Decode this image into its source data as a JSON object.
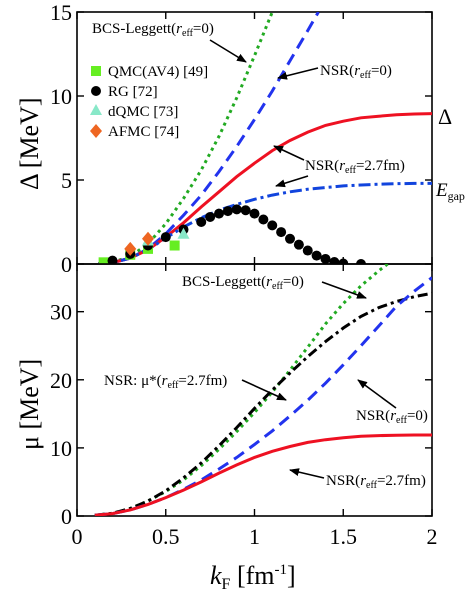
{
  "chart_data": [
    {
      "type": "line",
      "xlim": [
        0,
        2
      ],
      "ylim": [
        0,
        15
      ],
      "xticks": [
        0,
        0.5,
        1,
        1.5,
        2
      ],
      "yticks": [
        0,
        5,
        10,
        15
      ],
      "ylabel": "Δ  [MeV]",
      "series": [
        {
          "name": "BCS-Leggett(r_eff=0)",
          "color": "#22aa22",
          "dash": "3,4",
          "points": [
            [
              0.12,
              0.01
            ],
            [
              0.2,
              0.1
            ],
            [
              0.3,
              0.45
            ],
            [
              0.4,
              1.2
            ],
            [
              0.5,
              2.4
            ],
            [
              0.6,
              3.9
            ],
            [
              0.7,
              5.6
            ],
            [
              0.8,
              7.6
            ],
            [
              0.9,
              9.9
            ],
            [
              1.0,
              12.4
            ],
            [
              1.1,
              15.0
            ]
          ]
        },
        {
          "name": "NSR(r_eff=0)",
          "color": "#2233ee",
          "dash": "12,7",
          "points": [
            [
              0.12,
              0.01
            ],
            [
              0.2,
              0.08
            ],
            [
              0.3,
              0.35
            ],
            [
              0.4,
              0.9
            ],
            [
              0.5,
              1.8
            ],
            [
              0.6,
              2.9
            ],
            [
              0.7,
              4.1
            ],
            [
              0.8,
              5.5
            ],
            [
              0.9,
              7.0
            ],
            [
              1.0,
              8.6
            ],
            [
              1.1,
              10.3
            ],
            [
              1.2,
              12.1
            ],
            [
              1.3,
              13.9
            ],
            [
              1.36,
              15.0
            ]
          ]
        },
        {
          "name": "NSR(r_eff=2.7fm)",
          "color": "#ee1122",
          "dash": "",
          "points": [
            [
              0.12,
              0.01
            ],
            [
              0.2,
              0.08
            ],
            [
              0.3,
              0.35
            ],
            [
              0.4,
              0.85
            ],
            [
              0.5,
              1.6
            ],
            [
              0.6,
              2.45
            ],
            [
              0.7,
              3.4
            ],
            [
              0.8,
              4.3
            ],
            [
              0.9,
              5.2
            ],
            [
              1.0,
              6.0
            ],
            [
              1.1,
              6.75
            ],
            [
              1.2,
              7.35
            ],
            [
              1.3,
              7.85
            ],
            [
              1.4,
              8.25
            ],
            [
              1.5,
              8.5
            ],
            [
              1.6,
              8.7
            ],
            [
              1.7,
              8.8
            ],
            [
              1.8,
              8.88
            ],
            [
              1.9,
              8.93
            ],
            [
              2.0,
              8.95
            ]
          ]
        },
        {
          "name": "E_gap",
          "color": "#1144dd",
          "dash": "12,4,3,4",
          "points": [
            [
              0.12,
              0.01
            ],
            [
              0.2,
              0.08
            ],
            [
              0.3,
              0.35
            ],
            [
              0.4,
              0.85
            ],
            [
              0.5,
              1.55
            ],
            [
              0.6,
              2.2
            ],
            [
              0.7,
              2.75
            ],
            [
              0.8,
              3.2
            ],
            [
              0.9,
              3.55
            ],
            [
              1.0,
              3.85
            ],
            [
              1.1,
              4.1
            ],
            [
              1.2,
              4.3
            ],
            [
              1.3,
              4.45
            ],
            [
              1.4,
              4.55
            ],
            [
              1.5,
              4.65
            ],
            [
              1.6,
              4.7
            ],
            [
              1.7,
              4.75
            ],
            [
              1.8,
              4.78
            ],
            [
              1.9,
              4.8
            ],
            [
              2.0,
              4.8
            ]
          ]
        }
      ],
      "markers": [
        {
          "name": "QMC(AV4) [49]",
          "shape": "square",
          "color": "#66ee22",
          "points": [
            [
              0.15,
              0.1
            ],
            [
              0.3,
              0.55
            ],
            [
              0.4,
              0.9
            ],
            [
              0.55,
              1.1
            ]
          ]
        },
        {
          "name": "RG [72]",
          "shape": "circle",
          "color": "#000000",
          "points": [
            [
              0.2,
              0.2
            ],
            [
              0.3,
              0.6
            ],
            [
              0.4,
              1.1
            ],
            [
              0.5,
              1.6
            ],
            [
              0.6,
              2.05
            ],
            [
              0.7,
              2.5
            ],
            [
              0.75,
              2.8
            ],
            [
              0.8,
              3.0
            ],
            [
              0.85,
              3.15
            ],
            [
              0.9,
              3.25
            ],
            [
              0.95,
              3.2
            ],
            [
              1.0,
              3.0
            ],
            [
              1.05,
              2.65
            ],
            [
              1.1,
              2.3
            ],
            [
              1.15,
              1.9
            ],
            [
              1.2,
              1.5
            ],
            [
              1.25,
              1.15
            ],
            [
              1.3,
              0.8
            ],
            [
              1.35,
              0.5
            ],
            [
              1.4,
              0.3
            ],
            [
              1.45,
              0.12
            ],
            [
              1.5,
              0.03
            ],
            [
              1.6,
              0.0
            ]
          ]
        },
        {
          "name": "dQMC [73]",
          "shape": "triangle",
          "color": "#88e8c8",
          "points": [
            [
              0.4,
              1.4
            ],
            [
              0.6,
              1.8
            ]
          ]
        },
        {
          "name": "AFMC [74]",
          "shape": "diamond",
          "color": "#ee6622",
          "points": [
            [
              0.3,
              0.9
            ],
            [
              0.4,
              1.5
            ]
          ]
        }
      ],
      "annotations": [
        {
          "text": "BCS-Leggett(",
          "sub": "eff",
          "text2": "=0)",
          "r": "r"
        },
        {
          "text": "NSR(",
          "r": "r",
          "sub": "eff",
          "text2": "=0)"
        },
        {
          "text": "NSR(",
          "r": "r",
          "sub": "eff",
          "text2": "=2.7fm)"
        },
        {
          "text": "Δ"
        },
        {
          "text": "E",
          "sub": "gap"
        }
      ]
    },
    {
      "type": "line",
      "xlim": [
        0,
        2
      ],
      "ylim": [
        0,
        37
      ],
      "xticks": [
        0,
        0.5,
        1,
        1.5,
        2
      ],
      "yticks": [
        0,
        10,
        20,
        30
      ],
      "ylabel": "μ  [MeV]",
      "xlabel": "k_F [fm⁻¹]",
      "series": [
        {
          "name": "BCS-Leggett(r_eff=0)",
          "color": "#22aa22",
          "dash": "3,4",
          "points": [
            [
              0.1,
              0.1
            ],
            [
              0.2,
              0.4
            ],
            [
              0.3,
              1.1
            ],
            [
              0.4,
              2.2
            ],
            [
              0.5,
              3.6
            ],
            [
              0.6,
              5.3
            ],
            [
              0.7,
              7.4
            ],
            [
              0.8,
              9.8
            ],
            [
              0.9,
              12.4
            ],
            [
              1.0,
              15.2
            ],
            [
              1.1,
              18.2
            ],
            [
              1.2,
              21.4
            ],
            [
              1.3,
              24.8
            ],
            [
              1.4,
              28.2
            ],
            [
              1.5,
              31.2
            ],
            [
              1.6,
              33.8
            ],
            [
              1.7,
              36.0
            ],
            [
              1.75,
              37.0
            ]
          ]
        },
        {
          "name": "NSR: μ*(r_eff=2.7fm)",
          "color": "#000000",
          "dash": "10,4,3,4",
          "points": [
            [
              0.1,
              0.1
            ],
            [
              0.2,
              0.4
            ],
            [
              0.3,
              1.1
            ],
            [
              0.4,
              2.2
            ],
            [
              0.5,
              3.7
            ],
            [
              0.6,
              5.6
            ],
            [
              0.7,
              7.8
            ],
            [
              0.8,
              10.3
            ],
            [
              0.9,
              13.0
            ],
            [
              1.0,
              15.8
            ],
            [
              1.1,
              18.5
            ],
            [
              1.2,
              21.0
            ],
            [
              1.3,
              23.4
            ],
            [
              1.4,
              25.6
            ],
            [
              1.5,
              27.6
            ],
            [
              1.6,
              29.3
            ],
            [
              1.7,
              30.6
            ],
            [
              1.8,
              31.5
            ],
            [
              1.9,
              32.2
            ],
            [
              2.0,
              32.7
            ]
          ]
        },
        {
          "name": "NSR(r_eff=0)",
          "color": "#2233ee",
          "dash": "12,7",
          "points": [
            [
              0.1,
              0.1
            ],
            [
              0.2,
              0.35
            ],
            [
              0.3,
              0.9
            ],
            [
              0.4,
              1.7
            ],
            [
              0.5,
              2.7
            ],
            [
              0.6,
              3.9
            ],
            [
              0.7,
              5.3
            ],
            [
              0.8,
              6.9
            ],
            [
              0.9,
              8.6
            ],
            [
              1.0,
              10.5
            ],
            [
              1.1,
              12.5
            ],
            [
              1.2,
              14.7
            ],
            [
              1.3,
              17.0
            ],
            [
              1.4,
              19.5
            ],
            [
              1.5,
              22.2
            ],
            [
              1.6,
              25.0
            ],
            [
              1.7,
              27.9
            ],
            [
              1.8,
              30.8
            ],
            [
              1.9,
              33.0
            ],
            [
              2.0,
              35.0
            ]
          ]
        },
        {
          "name": "NSR(r_eff=2.7fm)",
          "color": "#ee1122",
          "dash": "",
          "points": [
            [
              0.1,
              0.1
            ],
            [
              0.2,
              0.35
            ],
            [
              0.3,
              0.9
            ],
            [
              0.4,
              1.7
            ],
            [
              0.5,
              2.7
            ],
            [
              0.6,
              3.8
            ],
            [
              0.7,
              5.0
            ],
            [
              0.8,
              6.3
            ],
            [
              0.9,
              7.5
            ],
            [
              1.0,
              8.6
            ],
            [
              1.1,
              9.5
            ],
            [
              1.2,
              10.2
            ],
            [
              1.3,
              10.8
            ],
            [
              1.4,
              11.2
            ],
            [
              1.5,
              11.5
            ],
            [
              1.6,
              11.7
            ],
            [
              1.7,
              11.8
            ],
            [
              1.8,
              11.85
            ],
            [
              1.9,
              11.9
            ],
            [
              2.0,
              11.9
            ]
          ]
        }
      ],
      "annotations": [
        {
          "text": "BCS-Leggett(",
          "r": "r",
          "sub": "eff",
          "text2": "=0)"
        },
        {
          "text": "NSR: μ*(",
          "r": "r",
          "sub": "eff",
          "text2": "=2.7fm)"
        },
        {
          "text": "NSR(",
          "r": "r",
          "sub": "eff",
          "text2": "=0)"
        },
        {
          "text": "NSR(",
          "r": "r",
          "sub": "eff",
          "text2": "=2.7fm)"
        }
      ]
    }
  ]
}
